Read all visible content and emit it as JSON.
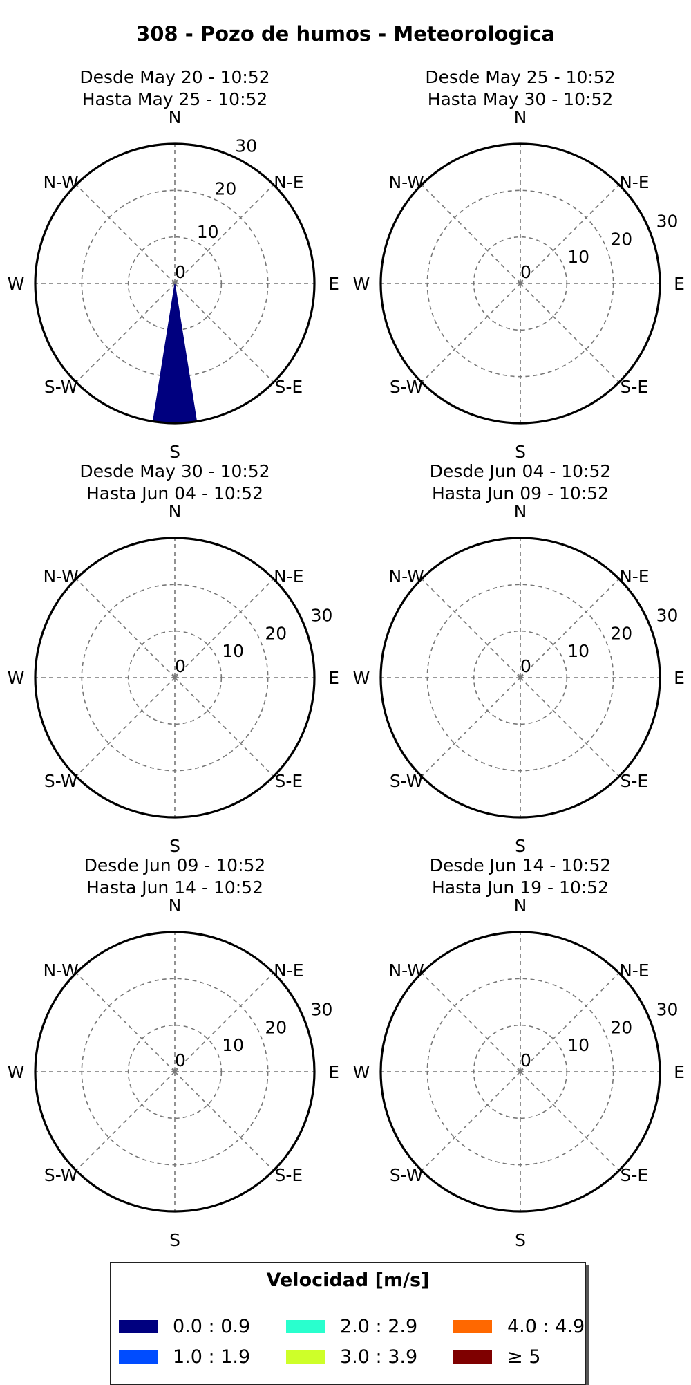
{
  "title": "308 - Pozo de humos - Meteorologica",
  "chart_data": {
    "type": "windrose",
    "direction_labels": [
      "N",
      "N-E",
      "E",
      "S-E",
      "S",
      "S-W",
      "W",
      "N-W"
    ],
    "radial_ticks": [
      0,
      10,
      20,
      30
    ],
    "radial_tick_labels": [
      "0",
      "10",
      "20",
      "30"
    ],
    "radial_max": 30,
    "panels": [
      {
        "title_line1": "Desde May 20 - 10:52",
        "title_line2": "Hasta May 25 - 10:52",
        "wedges": [
          {
            "direction_deg": 180,
            "width_deg": 18,
            "speed_bin": 0,
            "value": 30
          }
        ]
      },
      {
        "title_line1": "Desde May 25 - 10:52",
        "title_line2": "Hasta May 30 - 10:52",
        "wedges": []
      },
      {
        "title_line1": "Desde May 30 - 10:52",
        "title_line2": "Hasta Jun 04 - 10:52",
        "wedges": []
      },
      {
        "title_line1": "Desde Jun 04 - 10:52",
        "title_line2": "Hasta Jun 09 - 10:52",
        "wedges": []
      },
      {
        "title_line1": "Desde Jun 09 - 10:52",
        "title_line2": "Hasta Jun 14 - 10:52",
        "wedges": []
      },
      {
        "title_line1": "Desde Jun 14 - 10:52",
        "title_line2": "Hasta Jun 19 - 10:52",
        "wedges": []
      }
    ],
    "legend": {
      "title": "Velocidad [m/s]",
      "entries": [
        {
          "label": "0.0 : 0.9",
          "color": "#00007f"
        },
        {
          "label": "1.0 : 1.9",
          "color": "#004cff"
        },
        {
          "label": "2.0 : 2.9",
          "color": "#29ffce"
        },
        {
          "label": "3.0 : 3.9",
          "color": "#ceff29"
        },
        {
          "label": "4.0 : 4.9",
          "color": "#ff6800"
        },
        {
          "label": "≥ 5",
          "color": "#7f0000"
        }
      ]
    },
    "grid": true
  }
}
